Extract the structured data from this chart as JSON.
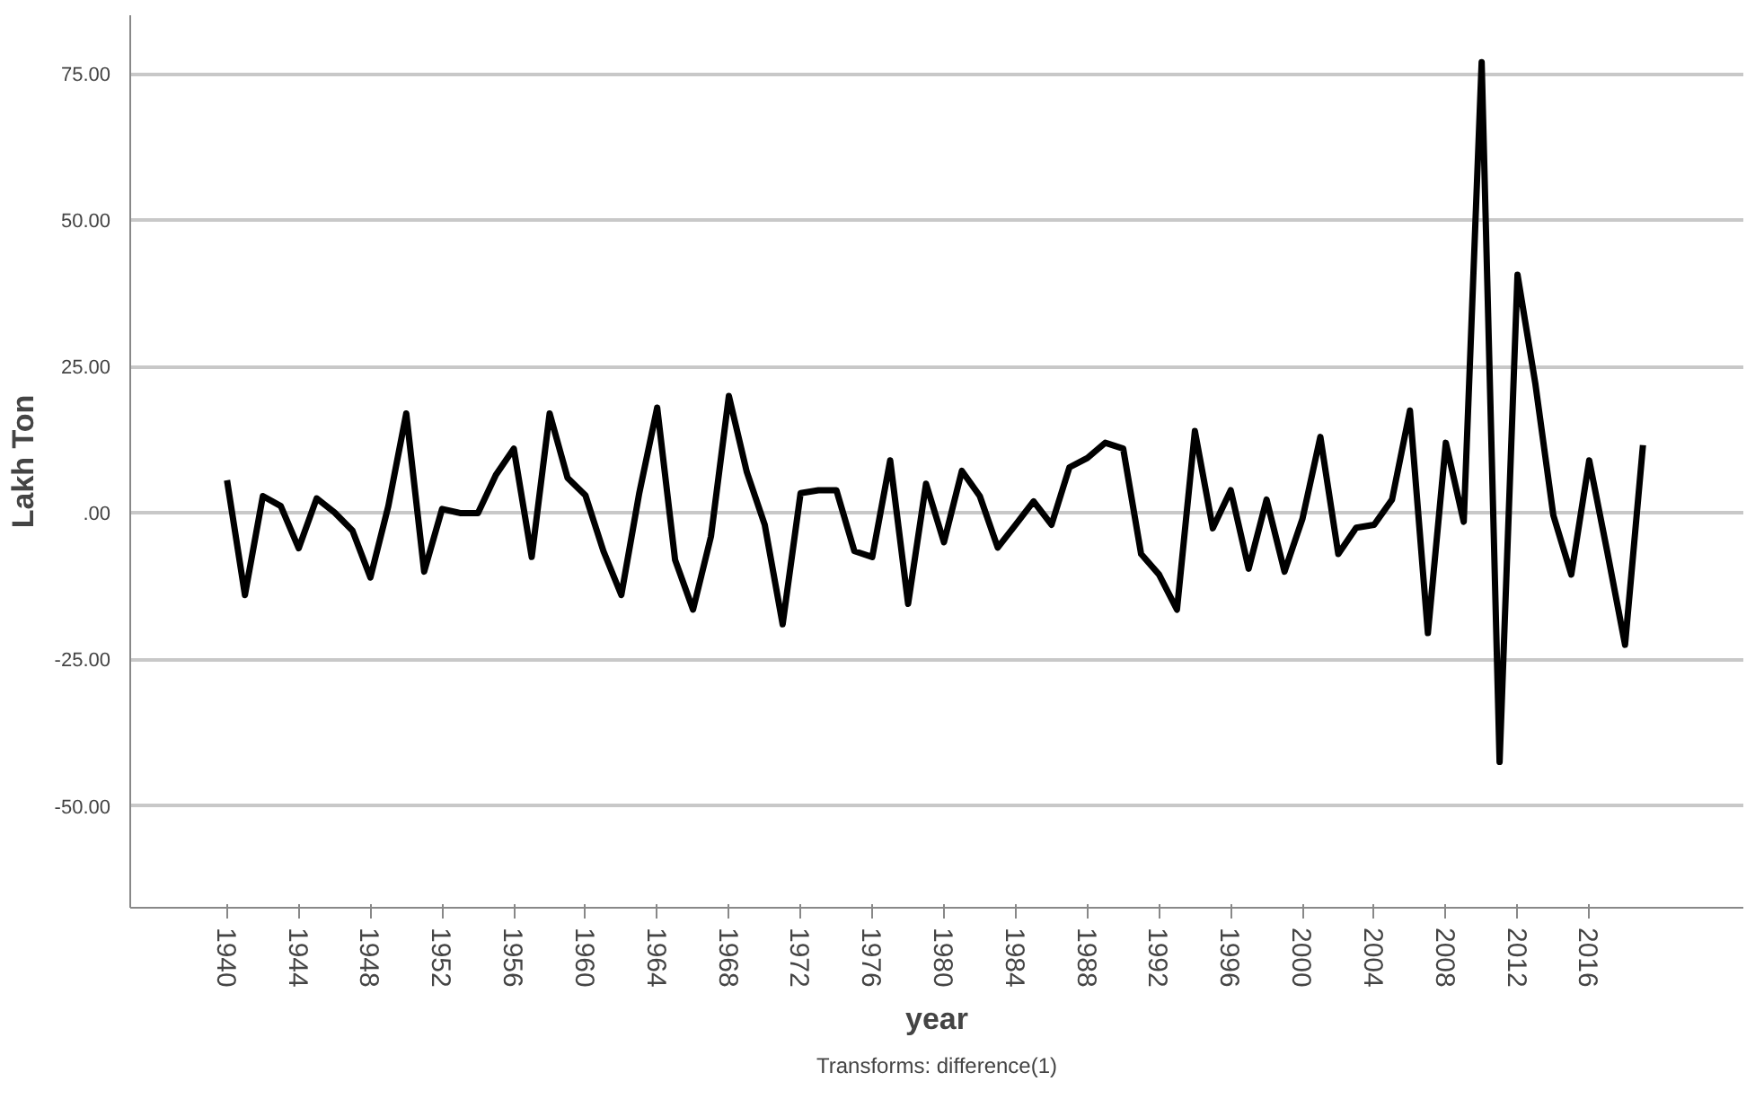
{
  "chart_data": {
    "type": "line",
    "xlabel": "year",
    "ylabel": "Lakh Ton",
    "annotations": [
      "Transforms: difference(1)"
    ],
    "x": [
      1940,
      1941,
      1942,
      1943,
      1944,
      1945,
      1946,
      1947,
      1948,
      1949,
      1950,
      1951,
      1952,
      1953,
      1954,
      1955,
      1956,
      1957,
      1958,
      1959,
      1960,
      1961,
      1962,
      1963,
      1964,
      1965,
      1966,
      1967,
      1968,
      1969,
      1970,
      1971,
      1972,
      1973,
      1974,
      1975,
      1976,
      1977,
      1978,
      1979,
      1980,
      1981,
      1982,
      1983,
      1984,
      1985,
      1986,
      1987,
      1988,
      1989,
      1990,
      1991,
      1992,
      1993,
      1994,
      1995,
      1996,
      1997,
      1998,
      1999,
      2000,
      2001,
      2002,
      2003,
      2004,
      2005,
      2006,
      2007,
      2008,
      2009,
      2010,
      2011,
      2012,
      2013,
      2014,
      2015,
      2016,
      2017,
      2018,
      2019
    ],
    "series": [
      {
        "color": "#000000",
        "values": [
          5.6,
          -14,
          2.9,
          1.2,
          -6,
          2.5,
          0.1,
          -3,
          -11,
          1.2,
          17,
          -10,
          0.7,
          0,
          0,
          6.5,
          11,
          -7.5,
          17,
          6,
          3,
          -6.5,
          -14,
          3.4,
          18,
          -8,
          -16.5,
          -4,
          20,
          7,
          -2,
          -19,
          3.4,
          3.9,
          3.9,
          -6.5,
          -7.5,
          9,
          -15.5,
          5,
          -5,
          7.2,
          2.9,
          -5.9,
          -2,
          2,
          -2,
          7.8,
          9.4,
          12,
          11,
          -7,
          -10.5,
          -16.5,
          14,
          -2.6,
          3.9,
          -9.5,
          2.3,
          -10,
          -1,
          13,
          -7,
          -2.5,
          -2,
          2.3,
          17.5,
          -20.5,
          12,
          -1.5,
          77,
          -42.5,
          40.7,
          22,
          -0.4,
          -10.5,
          9,
          -6.5,
          -22.5,
          11.6
        ]
      }
    ],
    "xlim": [
      1934.6,
      2024.6
    ],
    "ylim": [
      -67.4,
      85
    ],
    "xticks": [
      1940,
      1944,
      1948,
      1952,
      1956,
      1960,
      1964,
      1968,
      1972,
      1976,
      1980,
      1984,
      1988,
      1992,
      1996,
      2000,
      2004,
      2008,
      2012,
      2016
    ],
    "yticks": [
      {
        "value": -50,
        "label": "-50.00"
      },
      {
        "value": -25,
        "label": "-25.00"
      },
      {
        "value": 0,
        "label": ".00"
      },
      {
        "value": 25,
        "label": "25.00"
      },
      {
        "value": 50,
        "label": "50.00"
      },
      {
        "value": 75,
        "label": "75.00"
      }
    ],
    "grid": "y",
    "line_style": "solid"
  }
}
